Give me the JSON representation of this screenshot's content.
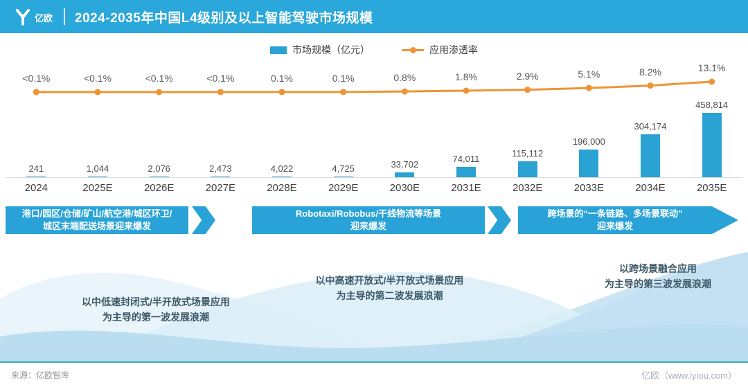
{
  "header": {
    "logo_text": "亿欧",
    "title": "2024-2035年中国L4级别及以上智能驾驶市场规模"
  },
  "legend": {
    "bar_label": "市场规模（亿元）",
    "line_label": "应用渗透率"
  },
  "chart_data": {
    "type": "bar",
    "title": "2024-2035年中国L4级别及以上智能驾驶市场规模",
    "categories": [
      "2024",
      "2025E",
      "2026E",
      "2027E",
      "2028E",
      "2029E",
      "2030E",
      "2031E",
      "2032E",
      "2033E",
      "2034E",
      "2035E"
    ],
    "ylim": [
      0,
      458814
    ],
    "legend_position": "top",
    "grid": false,
    "series": [
      {
        "name": "市场规模（亿元）",
        "type": "bar",
        "unit": "亿元",
        "values": [
          241,
          1044,
          2076,
          2473,
          4022,
          4725,
          33702,
          74011,
          115112,
          196000,
          304174,
          458814
        ],
        "labels": [
          "241",
          "1,044",
          "2,076",
          "2,473",
          "4,022",
          "4,725",
          "33,702",
          "74,011",
          "115,112",
          "196,000",
          "304,174",
          "458,814"
        ]
      },
      {
        "name": "应用渗透率",
        "type": "line",
        "unit": "%",
        "values": [
          0.05,
          0.05,
          0.05,
          0.05,
          0.1,
          0.1,
          0.8,
          1.8,
          2.9,
          5.1,
          8.2,
          13.1
        ],
        "labels": [
          "<0.1%",
          "<0.1%",
          "<0.1%",
          "<0.1%",
          "0.1%",
          "0.1%",
          "0.8%",
          "1.8%",
          "2.9%",
          "5.1%",
          "8.2%",
          "13.1%"
        ]
      }
    ]
  },
  "banners": [
    {
      "line1": "港口/园区/仓储/矿山/航空港/城区环卫/",
      "line2": "城区末端配送场景迎来爆发"
    },
    {
      "line1": "Robotaxi/Robobus/干线物流等场景",
      "line2": "迎来爆发"
    },
    {
      "line1": "跨场景的“一条链路、多场景联动”",
      "line2": "迎来爆发"
    }
  ],
  "waves": [
    {
      "line1": "以中低速封闭式/半开放式场景应用",
      "line2": "为主导的第一波发展浪潮"
    },
    {
      "line1": "以中高速开放式/半开放式场景应用",
      "line2": "为主导的第二波发展浪潮"
    },
    {
      "line1": "以跨场景融合应用",
      "line2": "为主导的第三波发展浪潮"
    }
  ],
  "footer": {
    "source": "来源：亿欧智库",
    "site": "亿欧（www.iyiou.com）"
  },
  "colors": {
    "accent": "#2AA7DB",
    "bar": "#2AA2D4",
    "line": "#EF9335",
    "banner": "#29A3D7",
    "divider": "#41A5B5"
  }
}
